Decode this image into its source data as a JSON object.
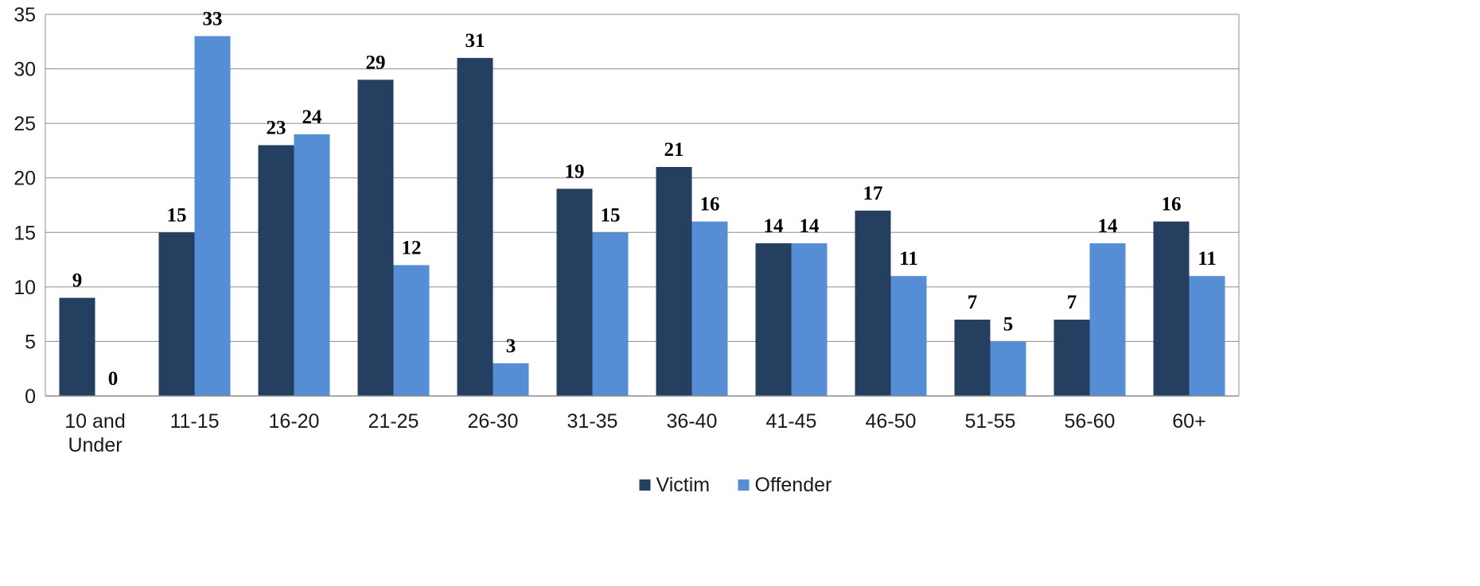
{
  "chart_data": {
    "type": "bar",
    "title": "",
    "xlabel": "",
    "ylabel": "",
    "ylim": [
      0,
      35
    ],
    "yticks": [
      0,
      5,
      10,
      15,
      20,
      25,
      30,
      35
    ],
    "grid": true,
    "legend_position": "bottom",
    "categories": [
      "10 and Under",
      "11-15",
      "16-20",
      "21-25",
      "26-30",
      "31-35",
      "36-40",
      "41-45",
      "46-50",
      "51-55",
      "56-60",
      "60+"
    ],
    "series": [
      {
        "name": "Victim",
        "color": "#243f60",
        "values": [
          9,
          15,
          23,
          29,
          31,
          19,
          21,
          14,
          17,
          7,
          7,
          16
        ]
      },
      {
        "name": "Offender",
        "color": "#558ed5",
        "values": [
          0,
          33,
          24,
          12,
          3,
          15,
          16,
          14,
          11,
          5,
          14,
          11
        ]
      }
    ]
  }
}
